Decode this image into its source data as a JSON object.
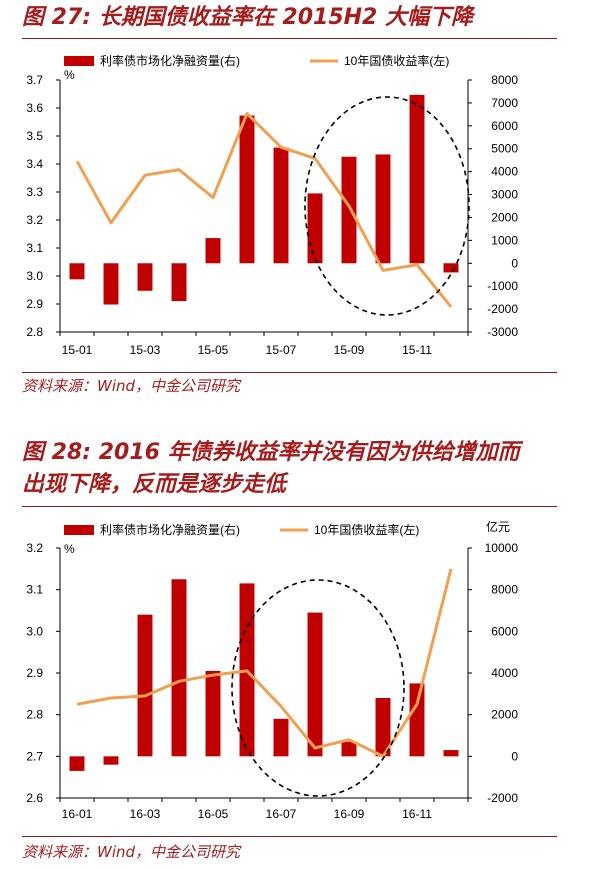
{
  "figures": [
    {
      "title": "图 27: 长期国债收益率在 2015H2 大幅下降",
      "source": "资料来源：Wind，中金公司研究"
    },
    {
      "title_line1": "图 28: 2016 年债券收益率并没有因为供给增加而",
      "title_line2": "出现下降，反而是逐步走低",
      "source": "资料来源：Wind，中金公司研究"
    }
  ],
  "colors": {
    "bar": "#c00000",
    "line": "#f0a050",
    "title": "#a51c1c"
  },
  "chart_data": [
    {
      "type": "bar",
      "series": [
        {
          "name": "利率债市场化净融资量(右)",
          "axis": "right",
          "values": [
            -700,
            -1800,
            -1200,
            -1650,
            1100,
            6450,
            5050,
            3050,
            4650,
            4750,
            7350,
            -400
          ]
        },
        {
          "name": "10年国债收益率(左)",
          "axis": "left",
          "type": "line",
          "values": [
            3.41,
            3.19,
            3.36,
            3.38,
            3.28,
            3.58,
            3.46,
            3.42,
            3.25,
            3.02,
            3.04,
            2.89
          ]
        }
      ],
      "categories": [
        "15-01",
        "15-02",
        "15-03",
        "15-04",
        "15-05",
        "15-06",
        "15-07",
        "15-08",
        "15-09",
        "15-10",
        "15-11",
        "15-12"
      ],
      "x_tick_labels": [
        "15-01",
        "15-03",
        "15-05",
        "15-07",
        "15-09",
        "15-11"
      ],
      "left_axis": {
        "unit": "%",
        "ylim": [
          2.8,
          3.7
        ],
        "ticks": [
          "2.8",
          "2.9",
          "3.0",
          "3.1",
          "3.2",
          "3.3",
          "3.4",
          "3.5",
          "3.6",
          "3.7"
        ]
      },
      "right_axis": {
        "unit": "",
        "ylim": [
          -3000,
          8000
        ],
        "ticks": [
          "-3000",
          "-2000",
          "-1000",
          "0",
          "1000",
          "2000",
          "3000",
          "4000",
          "5000",
          "6000",
          "7000",
          "8000"
        ]
      },
      "legend": "top",
      "annotation": "dashed ellipse highlighting 15-08 to 15-12"
    },
    {
      "type": "bar",
      "series": [
        {
          "name": "利率债市场化净融资量(右)",
          "axis": "right",
          "values": [
            -700,
            -400,
            6800,
            8500,
            4100,
            8300,
            1800,
            6900,
            700,
            2800,
            3500,
            300
          ]
        },
        {
          "name": "10年国债收益率(左)",
          "axis": "left",
          "type": "line",
          "values": [
            2.825,
            2.84,
            2.845,
            2.88,
            2.895,
            2.905,
            2.82,
            2.72,
            2.74,
            2.7,
            2.825,
            3.15
          ]
        }
      ],
      "categories": [
        "16-01",
        "16-02",
        "16-03",
        "16-04",
        "16-05",
        "16-06",
        "16-07",
        "16-08",
        "16-09",
        "16-10",
        "16-11",
        "16-12"
      ],
      "x_tick_labels": [
        "16-01",
        "16-03",
        "16-05",
        "16-07",
        "16-09",
        "16-11"
      ],
      "left_axis": {
        "unit": "%",
        "ylim": [
          2.6,
          3.2
        ],
        "ticks": [
          "2.6",
          "2.7",
          "2.8",
          "2.9",
          "3.0",
          "3.1",
          "3.2"
        ]
      },
      "right_axis": {
        "unit": "亿元",
        "ylim": [
          -2000,
          10000
        ],
        "ticks": [
          "-2000",
          "0",
          "2000",
          "4000",
          "6000",
          "8000",
          "10000"
        ]
      },
      "legend": "top",
      "annotation": "dashed ellipse highlighting 16-06 to 16-10"
    }
  ]
}
